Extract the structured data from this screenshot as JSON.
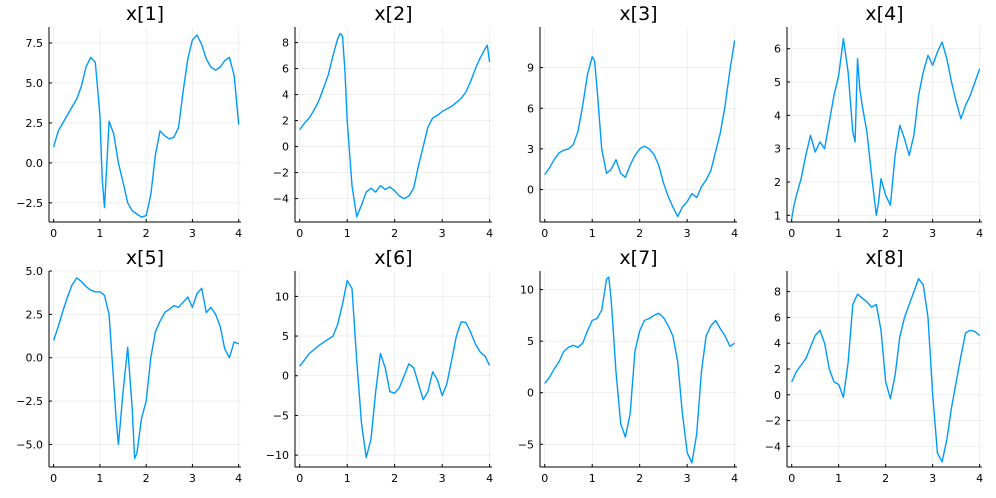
{
  "figure": {
    "background": "#ffffff",
    "series_color": "#009AFA"
  },
  "chart_data": [
    {
      "type": "line",
      "title": "x[1]",
      "x_ticks": [
        0,
        1,
        2,
        3,
        4
      ],
      "y_ticks": [
        -2.5,
        0.0,
        2.5,
        5.0,
        7.5
      ],
      "y_tick_labels": [
        "−2.5",
        "0.0",
        "2.5",
        "5.0",
        "7.5"
      ],
      "xlim": [
        -0.1,
        4.05
      ],
      "ylim": [
        -3.7,
        8.5
      ],
      "grid": true,
      "series": [
        {
          "x": [
            0,
            0.1,
            0.2,
            0.3,
            0.4,
            0.5,
            0.6,
            0.7,
            0.8,
            0.9,
            1.0,
            1.05,
            1.1,
            1.2,
            1.3,
            1.4,
            1.5,
            1.6,
            1.7,
            1.8,
            1.9,
            2.0,
            2.1,
            2.2,
            2.3,
            2.4,
            2.5,
            2.6,
            2.7,
            2.8,
            2.9,
            3.0,
            3.1,
            3.2,
            3.3,
            3.4,
            3.5,
            3.6,
            3.7,
            3.8,
            3.9,
            4.0
          ],
          "y": [
            1.0,
            2.0,
            2.5,
            3.0,
            3.5,
            4.0,
            4.8,
            6.0,
            6.6,
            6.3,
            3.0,
            -1.0,
            -2.8,
            2.6,
            1.8,
            0.0,
            -1.2,
            -2.5,
            -3.0,
            -3.2,
            -3.4,
            -3.3,
            -2.0,
            0.5,
            2.0,
            1.7,
            1.5,
            1.6,
            2.2,
            4.5,
            6.5,
            7.7,
            8.0,
            7.4,
            6.5,
            6.0,
            5.8,
            6.0,
            6.4,
            6.6,
            5.5,
            2.4
          ]
        }
      ]
    },
    {
      "type": "line",
      "title": "x[2]",
      "x_ticks": [
        0,
        1,
        2,
        3,
        4
      ],
      "y_ticks": [
        -4,
        -2,
        0,
        2,
        4,
        6,
        8
      ],
      "y_tick_labels": [
        "−4",
        "−2",
        "0",
        "2",
        "4",
        "6",
        "8"
      ],
      "xlim": [
        -0.1,
        4.05
      ],
      "ylim": [
        -5.8,
        9.2
      ],
      "grid": true,
      "series": [
        {
          "x": [
            0,
            0.1,
            0.2,
            0.3,
            0.4,
            0.5,
            0.6,
            0.7,
            0.8,
            0.85,
            0.9,
            0.95,
            1.0,
            1.1,
            1.2,
            1.3,
            1.4,
            1.5,
            1.6,
            1.7,
            1.8,
            1.9,
            2.0,
            2.1,
            2.2,
            2.3,
            2.4,
            2.5,
            2.6,
            2.7,
            2.8,
            2.9,
            3.0,
            3.1,
            3.2,
            3.3,
            3.4,
            3.5,
            3.6,
            3.7,
            3.8,
            3.9,
            3.95,
            4.0
          ],
          "y": [
            1.3,
            1.8,
            2.2,
            2.8,
            3.5,
            4.5,
            5.5,
            7.0,
            8.3,
            8.7,
            8.5,
            6.0,
            2.0,
            -3.0,
            -5.4,
            -4.5,
            -3.5,
            -3.2,
            -3.5,
            -3.0,
            -3.3,
            -3.1,
            -3.4,
            -3.8,
            -4.0,
            -3.8,
            -3.2,
            -1.5,
            0.0,
            1.5,
            2.2,
            2.4,
            2.7,
            2.9,
            3.1,
            3.4,
            3.7,
            4.2,
            5.0,
            6.0,
            6.8,
            7.5,
            7.8,
            6.5
          ]
        }
      ]
    },
    {
      "type": "line",
      "title": "x[3]",
      "x_ticks": [
        0,
        1,
        2,
        3,
        4
      ],
      "y_ticks": [
        0,
        3,
        6,
        9
      ],
      "y_tick_labels": [
        "0",
        "3",
        "6",
        "9"
      ],
      "xlim": [
        -0.1,
        4.05
      ],
      "ylim": [
        -2.4,
        12.0
      ],
      "grid": true,
      "series": [
        {
          "x": [
            0,
            0.1,
            0.2,
            0.3,
            0.4,
            0.5,
            0.6,
            0.7,
            0.8,
            0.9,
            1.0,
            1.05,
            1.1,
            1.2,
            1.3,
            1.4,
            1.5,
            1.6,
            1.7,
            1.8,
            1.9,
            2.0,
            2.1,
            2.2,
            2.3,
            2.4,
            2.5,
            2.6,
            2.7,
            2.8,
            2.9,
            3.0,
            3.1,
            3.2,
            3.3,
            3.4,
            3.5,
            3.6,
            3.7,
            3.8,
            3.9,
            4.0
          ],
          "y": [
            1.1,
            1.6,
            2.2,
            2.7,
            2.9,
            3.0,
            3.3,
            4.3,
            6.2,
            8.5,
            9.8,
            9.5,
            7.5,
            3.0,
            1.2,
            1.5,
            2.2,
            1.2,
            0.9,
            1.8,
            2.5,
            3.0,
            3.2,
            3.0,
            2.6,
            1.8,
            0.5,
            -0.5,
            -1.3,
            -2.0,
            -1.3,
            -0.9,
            -0.3,
            -0.6,
            0.2,
            0.7,
            1.4,
            2.8,
            4.2,
            6.2,
            8.8,
            11.0
          ]
        }
      ]
    },
    {
      "type": "line",
      "title": "x[4]",
      "x_ticks": [
        0,
        1,
        2,
        3,
        4
      ],
      "y_ticks": [
        1,
        2,
        3,
        4,
        5,
        6
      ],
      "y_tick_labels": [
        "1",
        "2",
        "3",
        "4",
        "5",
        "6"
      ],
      "xlim": [
        -0.1,
        4.05
      ],
      "ylim": [
        0.8,
        6.65
      ],
      "grid": true,
      "series": [
        {
          "x": [
            0,
            0.05,
            0.1,
            0.2,
            0.3,
            0.4,
            0.5,
            0.6,
            0.7,
            0.8,
            0.9,
            1.0,
            1.1,
            1.2,
            1.3,
            1.35,
            1.4,
            1.45,
            1.5,
            1.6,
            1.7,
            1.8,
            1.85,
            1.9,
            2.0,
            2.1,
            2.2,
            2.3,
            2.4,
            2.5,
            2.6,
            2.7,
            2.8,
            2.9,
            3.0,
            3.1,
            3.2,
            3.3,
            3.4,
            3.5,
            3.6,
            3.7,
            3.8,
            3.9,
            4.0
          ],
          "y": [
            0.9,
            1.3,
            1.6,
            2.1,
            2.8,
            3.4,
            2.9,
            3.2,
            3.0,
            3.8,
            4.6,
            5.2,
            6.3,
            5.3,
            3.5,
            3.2,
            5.7,
            4.8,
            4.3,
            3.5,
            2.2,
            1.0,
            1.4,
            2.1,
            1.6,
            1.3,
            2.8,
            3.7,
            3.3,
            2.8,
            3.4,
            4.6,
            5.3,
            5.8,
            5.5,
            5.9,
            6.2,
            5.7,
            5.0,
            4.4,
            3.9,
            4.3,
            4.6,
            5.0,
            5.4
          ]
        }
      ]
    },
    {
      "type": "line",
      "title": "x[5]",
      "x_ticks": [
        0,
        1,
        2,
        3,
        4
      ],
      "y_ticks": [
        -5.0,
        -2.5,
        0.0,
        2.5,
        5.0
      ],
      "y_tick_labels": [
        "−5.0",
        "−2.5",
        "0.0",
        "2.5",
        "5.0"
      ],
      "xlim": [
        -0.1,
        4.05
      ],
      "ylim": [
        -6.3,
        5.0
      ],
      "grid": true,
      "series": [
        {
          "x": [
            0,
            0.1,
            0.2,
            0.3,
            0.4,
            0.5,
            0.6,
            0.7,
            0.8,
            0.9,
            1.0,
            1.1,
            1.2,
            1.3,
            1.35,
            1.4,
            1.5,
            1.6,
            1.7,
            1.75,
            1.8,
            1.9,
            2.0,
            2.1,
            2.2,
            2.3,
            2.4,
            2.5,
            2.6,
            2.7,
            2.8,
            2.9,
            3.0,
            3.1,
            3.2,
            3.3,
            3.4,
            3.5,
            3.6,
            3.7,
            3.8,
            3.9,
            4.0
          ],
          "y": [
            1.0,
            1.8,
            2.7,
            3.5,
            4.2,
            4.6,
            4.4,
            4.1,
            3.9,
            3.8,
            3.8,
            3.6,
            2.5,
            -1.5,
            -3.5,
            -5.0,
            -2.0,
            0.6,
            -3.0,
            -5.8,
            -5.5,
            -3.5,
            -2.5,
            0.0,
            1.5,
            2.1,
            2.6,
            2.8,
            3.0,
            2.9,
            3.2,
            3.5,
            2.9,
            3.7,
            4.0,
            2.6,
            2.9,
            2.5,
            1.8,
            0.5,
            0.0,
            0.9,
            0.8
          ]
        }
      ]
    },
    {
      "type": "line",
      "title": "x[6]",
      "x_ticks": [
        0,
        1,
        2,
        3,
        4
      ],
      "y_ticks": [
        -10,
        -5,
        0,
        5,
        10
      ],
      "y_tick_labels": [
        "−10",
        "−5",
        "0",
        "5",
        "10"
      ],
      "xlim": [
        -0.1,
        4.05
      ],
      "ylim": [
        -11.5,
        13.2
      ],
      "grid": true,
      "series": [
        {
          "x": [
            0,
            0.1,
            0.2,
            0.3,
            0.4,
            0.5,
            0.6,
            0.7,
            0.8,
            0.9,
            1.0,
            1.1,
            1.2,
            1.3,
            1.4,
            1.5,
            1.6,
            1.7,
            1.8,
            1.9,
            2.0,
            2.1,
            2.2,
            2.3,
            2.4,
            2.5,
            2.6,
            2.7,
            2.8,
            2.9,
            3.0,
            3.1,
            3.2,
            3.3,
            3.4,
            3.5,
            3.6,
            3.7,
            3.8,
            3.9,
            4.0
          ],
          "y": [
            1.2,
            2.0,
            2.8,
            3.3,
            3.8,
            4.2,
            4.6,
            5.0,
            6.5,
            9.0,
            12.0,
            11.0,
            2.0,
            -6.0,
            -10.3,
            -8.0,
            -2.0,
            2.8,
            1.0,
            -2.0,
            -2.2,
            -1.5,
            0.0,
            1.5,
            1.0,
            -1.0,
            -3.0,
            -2.0,
            0.5,
            -0.5,
            -2.5,
            -1.0,
            2.0,
            5.0,
            6.8,
            6.7,
            5.5,
            4.0,
            3.0,
            2.5,
            1.3
          ]
        }
      ]
    },
    {
      "type": "line",
      "title": "x[7]",
      "x_ticks": [
        0,
        1,
        2,
        3,
        4
      ],
      "y_ticks": [
        -5,
        0,
        5,
        10
      ],
      "y_tick_labels": [
        "−5",
        "0",
        "5",
        "10"
      ],
      "xlim": [
        -0.1,
        4.05
      ],
      "ylim": [
        -7.2,
        11.8
      ],
      "grid": true,
      "series": [
        {
          "x": [
            0,
            0.1,
            0.2,
            0.3,
            0.4,
            0.5,
            0.6,
            0.7,
            0.8,
            0.9,
            1.0,
            1.1,
            1.2,
            1.3,
            1.35,
            1.4,
            1.5,
            1.6,
            1.7,
            1.8,
            1.9,
            2.0,
            2.1,
            2.2,
            2.3,
            2.4,
            2.5,
            2.6,
            2.7,
            2.8,
            2.9,
            3.0,
            3.1,
            3.2,
            3.3,
            3.4,
            3.5,
            3.6,
            3.7,
            3.8,
            3.9,
            4.0
          ],
          "y": [
            0.9,
            1.5,
            2.3,
            3.0,
            4.0,
            4.4,
            4.6,
            4.4,
            4.8,
            6.0,
            7.0,
            7.2,
            8.0,
            11.0,
            11.2,
            9.0,
            2.0,
            -3.0,
            -4.3,
            -2.0,
            4.0,
            6.0,
            7.0,
            7.2,
            7.5,
            7.7,
            7.3,
            6.5,
            5.5,
            3.0,
            -2.0,
            -5.8,
            -6.8,
            -4.0,
            2.0,
            5.5,
            6.5,
            7.0,
            6.2,
            5.5,
            4.5,
            4.8
          ]
        }
      ]
    },
    {
      "type": "line",
      "title": "x[8]",
      "x_ticks": [
        0,
        1,
        2,
        3,
        4
      ],
      "y_ticks": [
        -4,
        -2,
        0,
        2,
        4,
        6,
        8
      ],
      "y_tick_labels": [
        "−4",
        "−2",
        "0",
        "2",
        "4",
        "6",
        "8"
      ],
      "xlim": [
        -0.1,
        4.05
      ],
      "ylim": [
        -5.6,
        9.6
      ],
      "grid": true,
      "series": [
        {
          "x": [
            0,
            0.1,
            0.2,
            0.3,
            0.4,
            0.5,
            0.6,
            0.7,
            0.8,
            0.9,
            1.0,
            1.1,
            1.2,
            1.3,
            1.4,
            1.5,
            1.6,
            1.7,
            1.8,
            1.9,
            2.0,
            2.1,
            2.2,
            2.3,
            2.4,
            2.5,
            2.6,
            2.7,
            2.8,
            2.9,
            3.0,
            3.1,
            3.2,
            3.3,
            3.4,
            3.5,
            3.6,
            3.7,
            3.8,
            3.9,
            4.0
          ],
          "y": [
            1.0,
            1.8,
            2.3,
            2.8,
            3.7,
            4.6,
            5.0,
            4.0,
            2.0,
            1.0,
            0.8,
            -0.2,
            2.5,
            7.0,
            7.8,
            7.5,
            7.2,
            6.8,
            7.0,
            5.0,
            1.0,
            -0.3,
            1.5,
            4.5,
            6.0,
            7.0,
            8.0,
            9.0,
            8.5,
            6.0,
            0.0,
            -4.5,
            -5.2,
            -3.5,
            -1.0,
            1.0,
            3.0,
            4.8,
            5.0,
            4.9,
            4.6
          ]
        }
      ]
    }
  ]
}
